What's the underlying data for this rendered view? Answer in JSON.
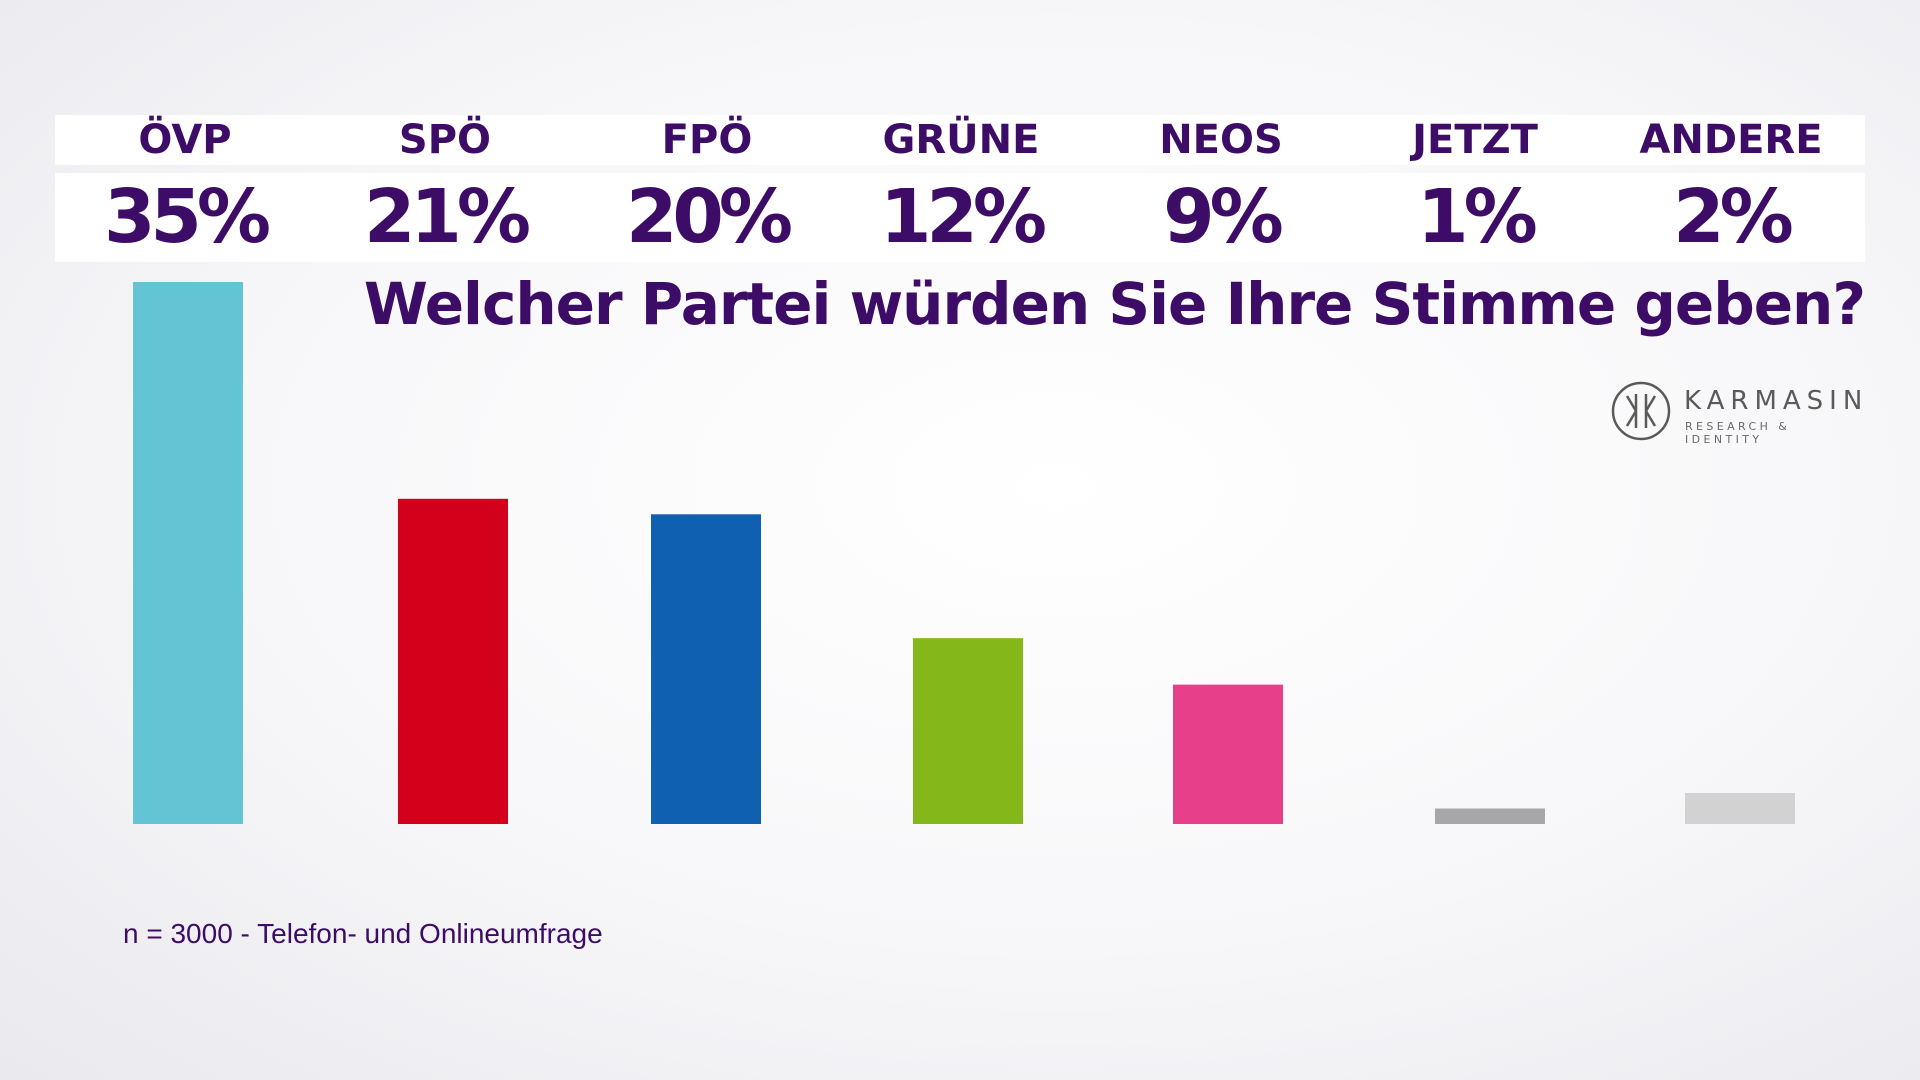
{
  "chart_data": {
    "type": "bar",
    "title": "Welcher Partei würden Sie Ihre Stimme geben?",
    "categories": [
      "ÖVP",
      "SPÖ",
      "FPÖ",
      "GRÜNE",
      "NEOS",
      "JETZT",
      "ANDERE"
    ],
    "values": [
      35,
      21,
      20,
      12,
      9,
      1,
      2
    ],
    "value_labels": [
      "35%",
      "21%",
      "20%",
      "12%",
      "9%",
      "1%",
      "2%"
    ],
    "colors": [
      "#63c5d3",
      "#d2001a",
      "#0f60b0",
      "#84b71a",
      "#e83f8a",
      "#a7a7a7",
      "#d2d2d2"
    ],
    "ylim": [
      0,
      35
    ]
  },
  "logo": {
    "name": "KARMASIN",
    "tagline": "RESEARCH & IDENTITY"
  },
  "footnote": "n = 3000 - Telefon- und Onlineumfrage"
}
